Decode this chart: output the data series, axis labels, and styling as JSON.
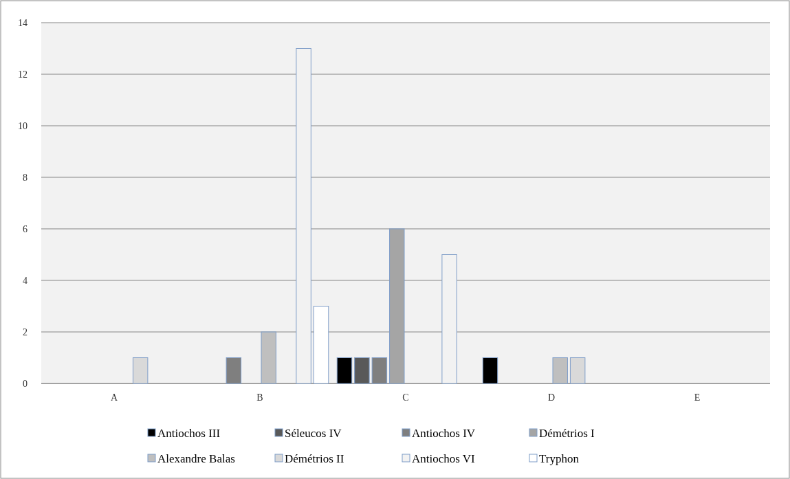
{
  "chart_data": {
    "type": "bar",
    "categories": [
      "A",
      "B",
      "C",
      "D",
      "E"
    ],
    "series": [
      {
        "name": "Antiochos III",
        "color": "#000000",
        "values": [
          0,
          0,
          1,
          1,
          0
        ]
      },
      {
        "name": "Séleucos IV",
        "color": "#595959",
        "values": [
          0,
          0,
          1,
          0,
          0
        ]
      },
      {
        "name": "Antiochos IV",
        "color": "#7f7f7f",
        "values": [
          0,
          1,
          1,
          0,
          0
        ]
      },
      {
        "name": "Démétrios I",
        "color": "#a5a5a5",
        "values": [
          0,
          0,
          6,
          0,
          0
        ]
      },
      {
        "name": "Alexandre Balas",
        "color": "#bfbfbf",
        "values": [
          0,
          2,
          0,
          1,
          0
        ]
      },
      {
        "name": "Démétrios II",
        "color": "#d9d9d9",
        "values": [
          1,
          0,
          0,
          1,
          0
        ]
      },
      {
        "name": "Antiochos VI",
        "color": "#f2f2f2",
        "values": [
          0,
          13,
          5,
          0,
          0
        ]
      },
      {
        "name": "Tryphon",
        "color": "#ffffff",
        "values": [
          0,
          3,
          0,
          0,
          0
        ]
      }
    ],
    "ylim": [
      0,
      14
    ],
    "yticks": [
      0,
      2,
      4,
      6,
      8,
      10,
      12,
      14
    ],
    "grid": "y",
    "legend": "bottom"
  }
}
